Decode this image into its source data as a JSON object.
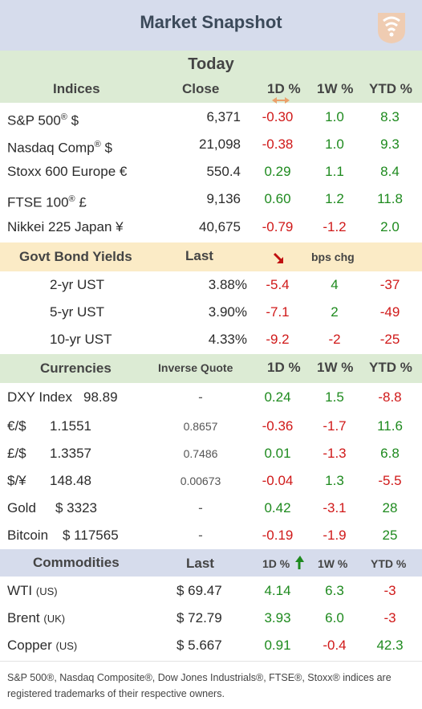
{
  "header": {
    "title": "Market Snapshot",
    "logo_icon": "signal-logo-icon"
  },
  "today": "Today",
  "indices": {
    "headers": {
      "name": "Indices",
      "close": "Close",
      "d1": "1D %",
      "w1": "1W %",
      "ytd": "YTD %"
    },
    "rows": [
      {
        "name": "S&P 500",
        "sup": "®",
        "suffix": " $",
        "close": "6,371",
        "d1": "-0.30",
        "w1": "1.0",
        "ytd": "8.3"
      },
      {
        "name": "Nasdaq Comp",
        "sup": "®",
        "suffix": " $",
        "close": "21,098",
        "d1": "-0.38",
        "w1": "1.0",
        "ytd": "9.3"
      },
      {
        "name": "Stoxx 600 Europe  €",
        "sup": "",
        "suffix": "",
        "close": "550.4",
        "d1": "0.29",
        "w1": "1.1",
        "ytd": "8.4"
      },
      {
        "name": "FTSE 100",
        "sup": "®",
        "suffix": " £",
        "close": "9,136",
        "d1": "0.60",
        "w1": "1.2",
        "ytd": "11.8"
      },
      {
        "name": "Nikkei 225 Japan ¥",
        "sup": "",
        "suffix": "",
        "close": "40,675",
        "d1": "-0.79",
        "w1": "-1.2",
        "ytd": "2.0"
      }
    ]
  },
  "bonds": {
    "headers": {
      "name": "Govt Bond Yields",
      "last": "Last",
      "chg": "bps chg"
    },
    "rows": [
      {
        "name": "2-yr UST",
        "last": "3.88%",
        "d1": "-5.4",
        "w1": "4",
        "ytd": "-37"
      },
      {
        "name": "5-yr UST",
        "last": "3.90%",
        "d1": "-7.1",
        "w1": "2",
        "ytd": "-49"
      },
      {
        "name": "10-yr UST",
        "last": "4.33%",
        "d1": "-9.2",
        "w1": "-2",
        "ytd": "-25"
      }
    ]
  },
  "currencies": {
    "headers": {
      "name": "Currencies",
      "inverse": "Inverse Quote",
      "d1": "1D %",
      "w1": "1W %",
      "ytd": "YTD %"
    },
    "rows": [
      {
        "name": "DXY Index",
        "value": "98.89",
        "inverse": "-",
        "d1": "0.24",
        "w1": "1.5",
        "ytd": "-8.8"
      },
      {
        "name": "€/$",
        "value": "1.1551",
        "inverse": "0.8657",
        "d1": "-0.36",
        "w1": "-1.7",
        "ytd": "11.6"
      },
      {
        "name": "£/$",
        "value": "1.3357",
        "inverse": "0.7486",
        "d1": "0.01",
        "w1": "-1.3",
        "ytd": "6.8"
      },
      {
        "name": "$/¥",
        "value": "148.48",
        "inverse": "0.00673",
        "d1": "-0.04",
        "w1": "1.3",
        "ytd": "-5.5"
      },
      {
        "name": "Gold",
        "value": "$ 3323",
        "inverse": "-",
        "d1": "0.42",
        "w1": "-3.1",
        "ytd": "28"
      },
      {
        "name": "Bitcoin",
        "value": "$ 117565",
        "inverse": "-",
        "d1": "-0.19",
        "w1": "-1.9",
        "ytd": "25"
      }
    ]
  },
  "commodities": {
    "headers": {
      "name": "Commodities",
      "last": "Last",
      "d1": "1D %",
      "w1": "1W %",
      "ytd": "YTD %"
    },
    "rows": [
      {
        "name": "WTI",
        "origin": "(US)",
        "last": "$ 69.47",
        "d1": "4.14",
        "w1": "6.3",
        "ytd": "-3"
      },
      {
        "name": "Brent",
        "origin": "(UK)",
        "last": "$ 72.79",
        "d1": "3.93",
        "w1": "6.0",
        "ytd": "-3"
      },
      {
        "name": "Copper",
        "origin": "(US)",
        "last": "$ 5.667",
        "d1": "0.91",
        "w1": "-0.4",
        "ytd": "42.3"
      }
    ]
  },
  "footer": "S&P 500®, Nasdaq Composite®, Dow Jones Industrials®, FTSE®, Stoxx® indices are registered trademarks of their respective owners.",
  "colors": {
    "positive": "#1e8a1e",
    "negative": "#d01919",
    "green_header": "#dcebd4",
    "yellow_header": "#fbebc6",
    "blue_header": "#d6dcec"
  }
}
